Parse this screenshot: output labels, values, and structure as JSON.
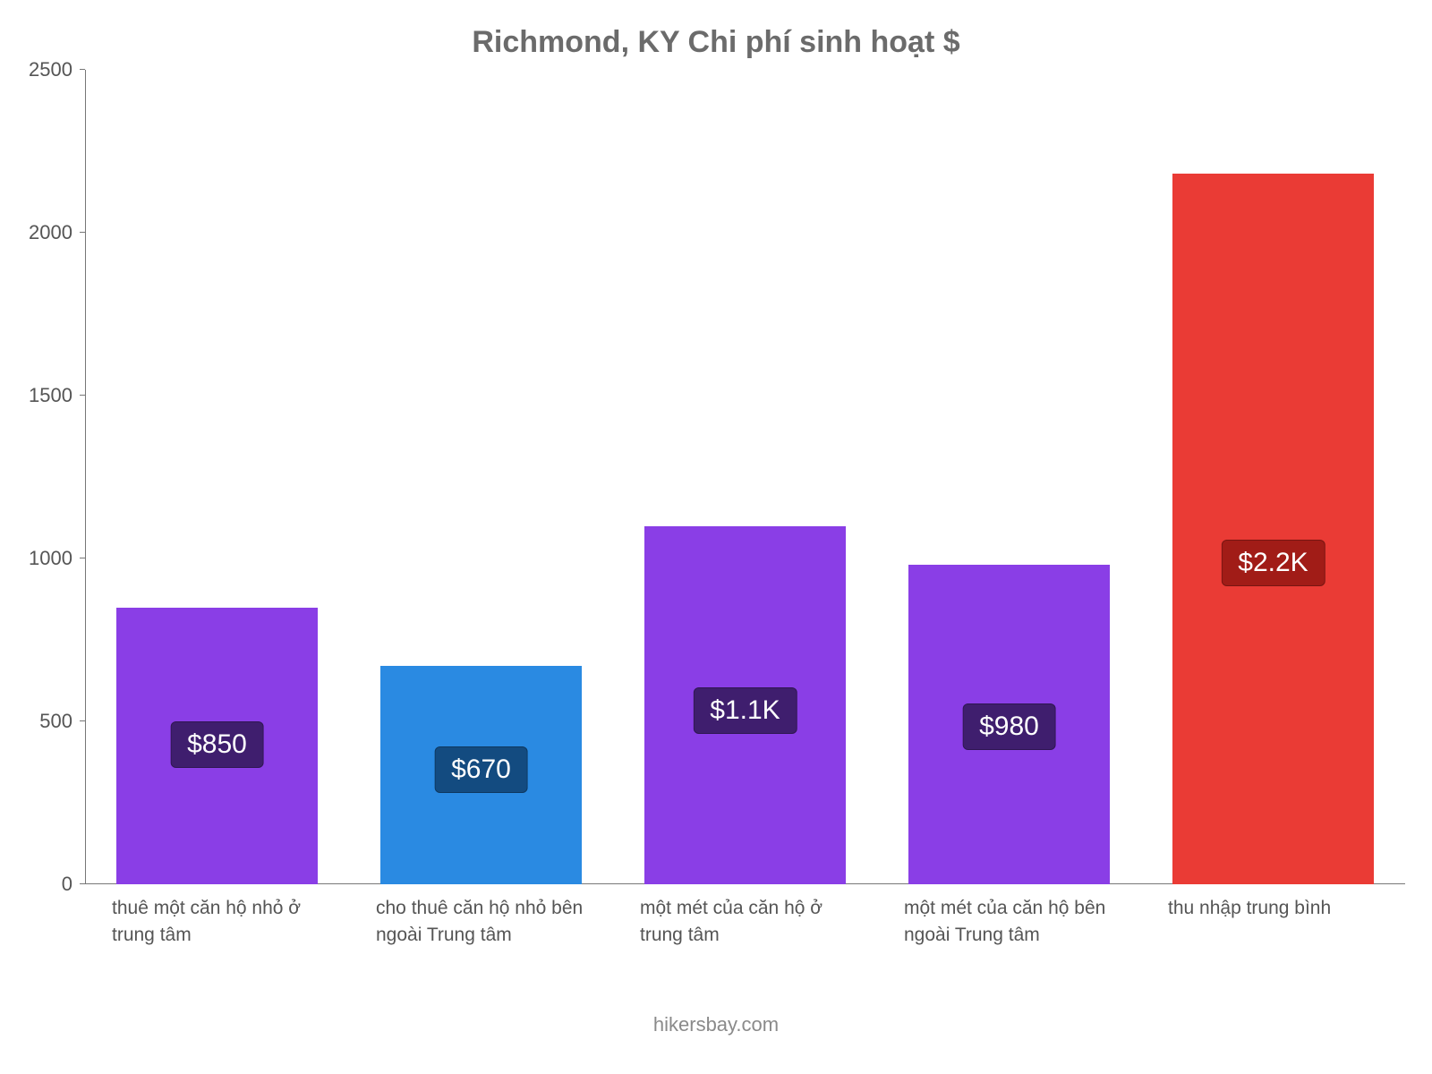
{
  "chart": {
    "type": "bar",
    "title": "Richmond, KY Chi phí sinh hoạt $",
    "title_color": "#6b6b6b",
    "title_fontsize": 34,
    "background_color": "#ffffff",
    "axis_color": "#777777",
    "label_color": "#555555",
    "label_fontsize": 22,
    "xlabel_fontsize": 21,
    "ylim": [
      0,
      2500
    ],
    "ytick_step": 500,
    "y_ticks": [
      {
        "value": 0,
        "label": "0"
      },
      {
        "value": 500,
        "label": "500"
      },
      {
        "value": 1000,
        "label": "1000"
      },
      {
        "value": 1500,
        "label": "1500"
      },
      {
        "value": 2000,
        "label": "2000"
      },
      {
        "value": 2500,
        "label": "2500"
      }
    ],
    "bar_width_pct": 76,
    "badge_fontsize": 30,
    "badge_text_color": "#ffffff",
    "bars": [
      {
        "label": "thuê một căn hộ nhỏ ở trung tâm",
        "value": 850,
        "display": "$850",
        "bar_color": "#8a3ee6",
        "badge_bg": "#3f1e6e"
      },
      {
        "label": "cho thuê căn hộ nhỏ bên ngoài Trung tâm",
        "value": 670,
        "display": "$670",
        "bar_color": "#2a8ae2",
        "badge_bg": "#134b80"
      },
      {
        "label": "một mét của căn hộ ở trung tâm",
        "value": 1100,
        "display": "$1.1K",
        "bar_color": "#8a3ee6",
        "badge_bg": "#3f1e6e"
      },
      {
        "label": "một mét của căn hộ bên ngoài Trung tâm",
        "value": 980,
        "display": "$980",
        "bar_color": "#8a3ee6",
        "badge_bg": "#3f1e6e"
      },
      {
        "label": "thu nhập trung bình",
        "value": 2180,
        "display": "$2.2K",
        "bar_color": "#ea3b35",
        "badge_bg": "#a11c17"
      }
    ],
    "footer": "hikersbay.com",
    "footer_color": "#8a8a8a",
    "footer_fontsize": 22
  }
}
